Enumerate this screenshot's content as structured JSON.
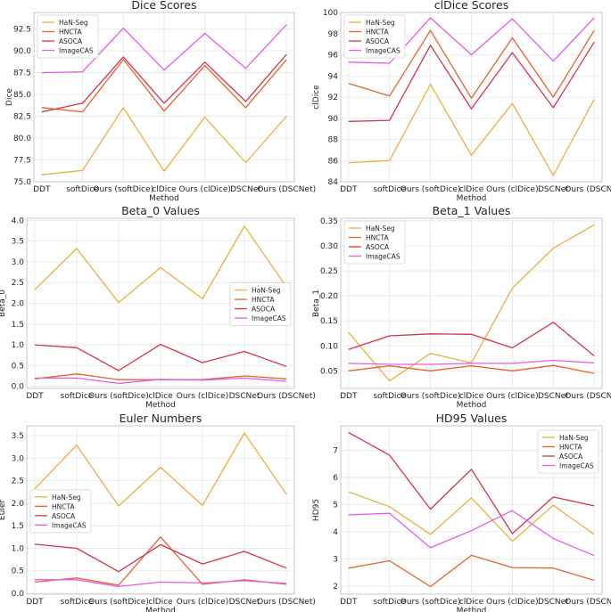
{
  "colors": {
    "HaN-Seg": "#e8b13e",
    "HNCTA": "#e2642e",
    "ASOCA": "#d5334a",
    "ImageCAS": "#e35ce6"
  },
  "chart_data": [
    {
      "type": "line",
      "title": "Dice Scores",
      "xlabel": "Method",
      "ylabel": "Dice",
      "categories": [
        "DDT",
        "softDice",
        "Ours (softDice)",
        "clDice",
        "Ours (clDice)",
        "DSCNet",
        "Ours (DSCNet)"
      ],
      "ylim": [
        75.0,
        94.4
      ],
      "yticks": [
        "75.0",
        "77.5",
        "80.0",
        "82.5",
        "85.0",
        "87.5",
        "90.0",
        "92.5"
      ],
      "legend": "top-left",
      "series": [
        {
          "name": "HaN-Seg",
          "values": [
            75.8,
            76.3,
            83.5,
            76.2,
            82.4,
            77.2,
            82.5
          ]
        },
        {
          "name": "HNCTA",
          "values": [
            83.5,
            83.0,
            89.0,
            83.1,
            88.3,
            83.5,
            89.0
          ]
        },
        {
          "name": "ASOCA",
          "values": [
            83.0,
            84.0,
            89.3,
            84.0,
            88.7,
            84.2,
            89.6
          ]
        },
        {
          "name": "ImageCAS",
          "values": [
            87.5,
            87.6,
            92.6,
            87.8,
            92.0,
            88.0,
            93.0
          ]
        }
      ]
    },
    {
      "type": "line",
      "title": "clDice Scores",
      "xlabel": "Method",
      "ylabel": "clDice",
      "categories": [
        "DDT",
        "softDice",
        "Ours (softDice)",
        "clDice",
        "Ours (clDice)",
        "DSCNet",
        "Ours (DSCNet)"
      ],
      "ylim": [
        84.0,
        100.0
      ],
      "yticks": [
        "84",
        "86",
        "88",
        "90",
        "92",
        "94",
        "96",
        "98",
        "100"
      ],
      "legend": "top-left",
      "series": [
        {
          "name": "HaN-Seg",
          "values": [
            85.8,
            86.0,
            93.2,
            86.5,
            91.4,
            84.6,
            91.8
          ]
        },
        {
          "name": "HNCTA",
          "values": [
            93.3,
            92.1,
            98.3,
            91.9,
            97.6,
            92.0,
            98.3
          ]
        },
        {
          "name": "ASOCA",
          "values": [
            89.7,
            89.8,
            96.9,
            90.9,
            96.2,
            91.0,
            97.2
          ]
        },
        {
          "name": "ImageCAS",
          "values": [
            95.3,
            95.2,
            99.5,
            96.0,
            99.4,
            95.4,
            99.5
          ]
        }
      ]
    },
    {
      "type": "line",
      "title": "Beta_0 Values",
      "xlabel": "Method",
      "ylabel": "Beta_0",
      "categories": [
        "DDT",
        "softDice",
        "Ours (softDice)",
        "clDice",
        "Ours (clDice)",
        "DSCNet",
        "Ours (DSCNet)"
      ],
      "ylim": [
        -0.05,
        4.05
      ],
      "yticks": [
        "0.0",
        "0.5",
        "1.0",
        "1.5",
        "2.0",
        "2.5",
        "3.0",
        "3.5",
        "4.0"
      ],
      "legend": "center-right",
      "series": [
        {
          "name": "HaN-Seg",
          "values": [
            2.33,
            3.32,
            2.02,
            2.86,
            2.11,
            3.86,
            2.4
          ]
        },
        {
          "name": "HNCTA",
          "values": [
            0.18,
            0.3,
            0.16,
            0.16,
            0.16,
            0.25,
            0.18
          ]
        },
        {
          "name": "ASOCA",
          "values": [
            1.0,
            0.93,
            0.38,
            1.01,
            0.57,
            0.84,
            0.48
          ]
        },
        {
          "name": "ImageCAS",
          "values": [
            0.2,
            0.2,
            0.07,
            0.17,
            0.15,
            0.2,
            0.12
          ]
        }
      ]
    },
    {
      "type": "line",
      "title": "Beta_1 Values",
      "xlabel": "Method",
      "ylabel": "Beta_1",
      "categories": [
        "DDT",
        "softDice",
        "Ours (softDice)",
        "clDice",
        "Ours (clDice)",
        "DSCNet",
        "Ours (DSCNet)"
      ],
      "ylim": [
        0.015,
        0.355
      ],
      "yticks": [
        "0.05",
        "0.10",
        "0.15",
        "0.20",
        "0.25",
        "0.30",
        "0.35"
      ],
      "legend": "top-left",
      "series": [
        {
          "name": "HaN-Seg",
          "values": [
            0.127,
            0.03,
            0.085,
            0.066,
            0.215,
            0.295,
            0.342
          ]
        },
        {
          "name": "HNCTA",
          "values": [
            0.05,
            0.06,
            0.05,
            0.06,
            0.05,
            0.061,
            0.045
          ]
        },
        {
          "name": "ASOCA",
          "values": [
            0.093,
            0.12,
            0.124,
            0.123,
            0.096,
            0.147,
            0.08
          ]
        },
        {
          "name": "ImageCAS",
          "values": [
            0.065,
            0.063,
            0.063,
            0.065,
            0.065,
            0.071,
            0.066
          ]
        }
      ]
    },
    {
      "type": "line",
      "title": "Euler Numbers",
      "xlabel": "Method",
      "ylabel": "Euler",
      "categories": [
        "DDT",
        "softDice",
        "Ours (softDice)",
        "clDice",
        "Ours (clDice)",
        "DSCNet",
        "Ours (DSCNet)"
      ],
      "ylim": [
        -0.02,
        3.72
      ],
      "yticks": [
        "0.0",
        "0.5",
        "1.0",
        "1.5",
        "2.0",
        "2.5",
        "3.0",
        "3.5"
      ],
      "legend": "center-left",
      "series": [
        {
          "name": "HaN-Seg",
          "values": [
            2.32,
            3.29,
            1.94,
            2.8,
            1.95,
            3.56,
            2.2
          ]
        },
        {
          "name": "HNCTA",
          "values": [
            0.25,
            0.34,
            0.18,
            1.25,
            0.2,
            0.3,
            0.2
          ]
        },
        {
          "name": "ASOCA",
          "values": [
            1.09,
            1.0,
            0.48,
            1.08,
            0.65,
            0.93,
            0.56
          ]
        },
        {
          "name": "ImageCAS",
          "values": [
            0.3,
            0.3,
            0.15,
            0.25,
            0.23,
            0.28,
            0.22
          ]
        }
      ]
    },
    {
      "type": "line",
      "title": "HD95 Values",
      "xlabel": "Method",
      "ylabel": "HD95",
      "categories": [
        "DDT",
        "softDice",
        "Ours (softDice)",
        "clDice",
        "Ours (clDice)",
        "DSCNet",
        "Ours (DSCNet)"
      ],
      "ylim": [
        1.7,
        7.9
      ],
      "yticks": [
        "2",
        "3",
        "4",
        "5",
        "6",
        "7"
      ],
      "legend": "top-right",
      "series": [
        {
          "name": "HaN-Seg",
          "values": [
            5.47,
            4.92,
            3.9,
            5.25,
            3.65,
            4.97,
            3.9
          ]
        },
        {
          "name": "HNCTA",
          "values": [
            2.66,
            2.93,
            1.98,
            3.13,
            2.68,
            2.66,
            2.21
          ]
        },
        {
          "name": "ASOCA",
          "values": [
            7.65,
            6.82,
            4.83,
            6.3,
            3.93,
            5.28,
            4.95
          ]
        },
        {
          "name": "ImageCAS",
          "values": [
            4.62,
            4.68,
            3.41,
            4.04,
            4.78,
            3.75,
            3.12
          ]
        }
      ]
    }
  ]
}
